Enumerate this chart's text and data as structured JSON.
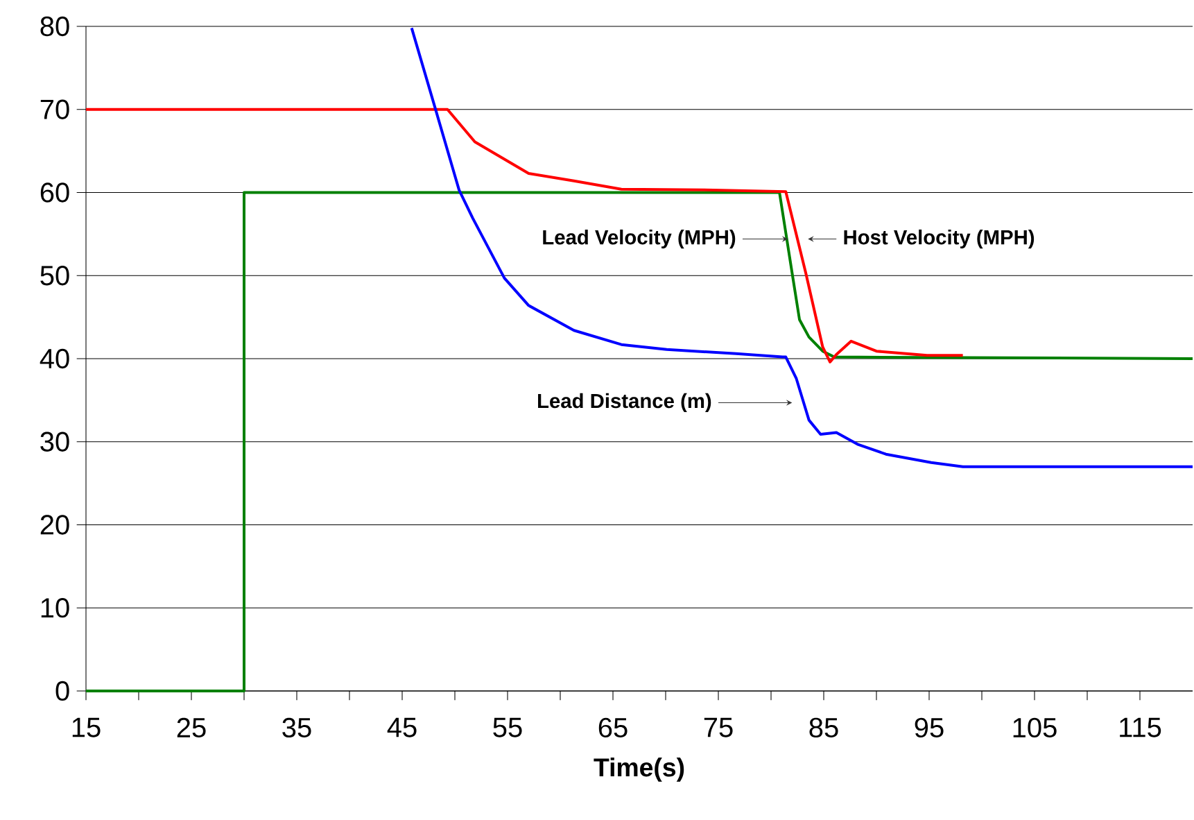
{
  "chart_data": {
    "type": "line",
    "xlabel": "Time(s)",
    "xlim": [
      15,
      120
    ],
    "ylim": [
      0,
      80
    ],
    "xticks": [
      15,
      {
        "value": 20,
        "label": null
      },
      25,
      {
        "value": 30,
        "label": null
      },
      35,
      {
        "value": 40,
        "label": null
      },
      45,
      {
        "value": 50,
        "label": null
      },
      55,
      {
        "value": 60,
        "label": null
      },
      65,
      {
        "value": 70,
        "label": null
      },
      75,
      {
        "value": 80,
        "label": null
      },
      85,
      {
        "value": 90,
        "label": null
      },
      95,
      {
        "value": 100,
        "label": null
      },
      105,
      {
        "value": 110,
        "label": null
      },
      115
    ],
    "yticks": [
      0,
      10,
      20,
      30,
      40,
      50,
      60,
      70,
      80
    ],
    "grid": "y",
    "series": [
      {
        "name": "Lead Velocity (MPH)",
        "color": "#008000",
        "x": [
          15,
          30,
          30,
          80.8,
          82.0,
          82.7,
          83.6,
          84.9,
          86.0,
          120
        ],
        "values": [
          0,
          0,
          60,
          60,
          50.3,
          44.7,
          42.6,
          40.9,
          40.2,
          40
        ]
      },
      {
        "name": "Host Velocity (MPH)",
        "color": "#ff0000",
        "x": [
          15,
          49.3,
          51.9,
          57.0,
          61.3,
          65.8,
          74.5,
          81.4,
          83.3,
          84.9,
          85.6,
          86.2,
          87.6,
          90.0,
          94.8,
          98.2
        ],
        "values": [
          70,
          70,
          66.1,
          62.3,
          61.4,
          60.4,
          60.3,
          60.1,
          50.3,
          41.4,
          39.6,
          40.5,
          42.1,
          40.9,
          40.4,
          40.4
        ]
      },
      {
        "name": "Lead Distance (m)",
        "color": "#0000ff",
        "x": [
          45.9,
          48.1,
          50.4,
          51.7,
          54.7,
          57.0,
          61.3,
          65.8,
          70.1,
          76.7,
          81.1,
          81.4,
          82.4,
          83.6,
          84.7,
          86.2,
          88.2,
          90.9,
          95.2,
          98.2,
          120
        ],
        "values": [
          79.8,
          70.3,
          60.3,
          56.9,
          49.7,
          46.4,
          43.4,
          41.7,
          41.1,
          40.6,
          40.2,
          40.2,
          37.6,
          32.6,
          30.9,
          31.1,
          29.7,
          28.5,
          27.5,
          27.0,
          27.0
        ]
      }
    ]
  }
}
